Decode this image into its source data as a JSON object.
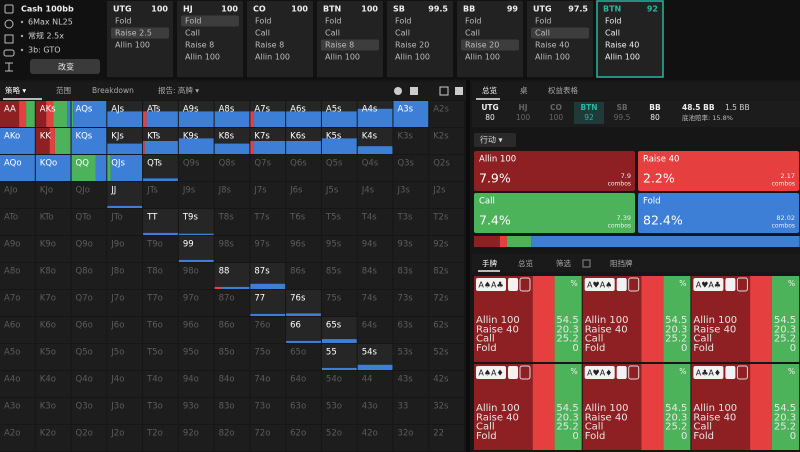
{
  "sidebar": {
    "title": "Cash 100bb",
    "items": [
      "6Max NL25",
      "常规 2.5x",
      "3b: GTO"
    ],
    "button": "改变"
  },
  "action_columns": [
    {
      "position": "UTG",
      "stack": 100,
      "actions": [
        "Fold",
        "Raise 2.5",
        "Allin 100"
      ],
      "selected": 1
    },
    {
      "position": "HJ",
      "stack": 100,
      "actions": [
        "Fold",
        "Call",
        "Raise 8",
        "Allin 100"
      ],
      "selected": 0
    },
    {
      "position": "CO",
      "stack": 100,
      "actions": [
        "Fold",
        "Call",
        "Raise 8",
        "Allin 100"
      ]
    },
    {
      "position": "BTN",
      "stack": 100,
      "actions": [
        "Fold",
        "Call",
        "Raise 8",
        "Allin 100"
      ],
      "selected": 2
    },
    {
      "position": "SB",
      "stack": 99.5,
      "actions": [
        "Fold",
        "Call",
        "Raise 20",
        "Allin 100"
      ]
    },
    {
      "position": "BB",
      "stack": 99,
      "actions": [
        "Fold",
        "Call",
        "Raise 20",
        "Allin 100"
      ],
      "selected": 2
    },
    {
      "position": "UTG",
      "stack": 97.5,
      "actions": [
        "Fold",
        "Call",
        "Raise 40",
        "Allin 100"
      ],
      "selected": 1
    },
    {
      "position": "BTN",
      "stack": 92,
      "actions": [
        "Fold",
        "Call",
        "Raise 40",
        "Allin 100"
      ],
      "active": true
    }
  ],
  "strategy_tabs": [
    "策略 ▾",
    "范围",
    "Breakdown",
    "报告: 高牌 ▾"
  ],
  "hand_grid": {
    "rows": [
      [
        {
          "label": "AA",
          "weight": 1,
          "mix": [
            55,
            20,
            25,
            0
          ]
        },
        {
          "label": "AKs",
          "weight": 1,
          "mix": [
            30,
            20,
            40,
            10
          ]
        },
        {
          "label": "AQs",
          "weight": 1,
          "mix": [
            0,
            0,
            5,
            95
          ]
        },
        {
          "label": "AJs",
          "weight": 0.6,
          "mix": [
            0,
            0,
            0,
            100
          ]
        },
        {
          "label": "ATs",
          "weight": 0.6,
          "mix": [
            0,
            10,
            0,
            90
          ]
        },
        {
          "label": "A9s",
          "weight": 0.6,
          "mix": [
            0,
            0,
            0,
            100
          ]
        },
        {
          "label": "A8s",
          "weight": 0.6,
          "mix": [
            0,
            0,
            0,
            100
          ]
        },
        {
          "label": "A7s",
          "weight": 0.6,
          "mix": [
            0,
            10,
            0,
            90
          ]
        },
        {
          "label": "A6s",
          "weight": 0.6,
          "mix": [
            0,
            0,
            0,
            100
          ]
        },
        {
          "label": "A5s",
          "weight": 0.6,
          "mix": [
            0,
            0,
            0,
            100
          ]
        },
        {
          "label": "A4s",
          "weight": 0.7,
          "mix": [
            0,
            0,
            0,
            100
          ]
        },
        {
          "label": "A3s",
          "weight": 1,
          "mix": [
            0,
            0,
            0,
            100
          ]
        },
        {
          "label": "A2s"
        }
      ],
      [
        {
          "label": "AKo",
          "weight": 1,
          "mix": [
            0,
            0,
            0,
            100
          ]
        },
        {
          "label": "KK",
          "weight": 1,
          "mix": [
            40,
            15,
            45,
            0
          ]
        },
        {
          "label": "KQs",
          "weight": 1,
          "mix": [
            0,
            0,
            0,
            100
          ]
        },
        {
          "label": "KJs",
          "weight": 0.4,
          "mix": [
            0,
            0,
            0,
            100
          ]
        },
        {
          "label": "KTs",
          "weight": 0.5,
          "mix": [
            0,
            5,
            0,
            95
          ]
        },
        {
          "label": "K9s",
          "weight": 0.6,
          "mix": [
            0,
            0,
            0,
            100
          ]
        },
        {
          "label": "K8s",
          "weight": 0.4,
          "mix": [
            0,
            0,
            0,
            100
          ]
        },
        {
          "label": "K7s",
          "weight": 0.5,
          "mix": [
            0,
            8,
            0,
            92
          ]
        },
        {
          "label": "K6s",
          "weight": 0.5,
          "mix": [
            0,
            0,
            0,
            100
          ]
        },
        {
          "label": "K5s",
          "weight": 0.6,
          "mix": [
            0,
            0,
            0,
            100
          ]
        },
        {
          "label": "K4s",
          "weight": 0.3,
          "mix": [
            0,
            0,
            0,
            100
          ]
        },
        {
          "label": "K3s"
        },
        {
          "label": "K2s"
        }
      ],
      [
        {
          "label": "AQo",
          "weight": 1,
          "mix": [
            0,
            0,
            0,
            100
          ]
        },
        {
          "label": "KQo",
          "weight": 1,
          "mix": [
            0,
            0,
            0,
            100
          ]
        },
        {
          "label": "QQ",
          "weight": 1,
          "mix": [
            0,
            0,
            70,
            30
          ]
        },
        {
          "label": "QJs",
          "weight": 1,
          "mix": [
            0,
            0,
            10,
            90
          ]
        },
        {
          "label": "QTs",
          "weight": 0.1,
          "mix": [
            0,
            0,
            0,
            100
          ]
        },
        {
          "label": "Q9s"
        },
        {
          "label": "Q8s"
        },
        {
          "label": "Q7s"
        },
        {
          "label": "Q6s"
        },
        {
          "label": "Q5s"
        },
        {
          "label": "Q4s"
        },
        {
          "label": "Q3s"
        },
        {
          "label": "Q2s"
        }
      ],
      [
        {
          "label": "AJo"
        },
        {
          "label": "KJo"
        },
        {
          "label": "QJo"
        },
        {
          "label": "JJ",
          "weight": 0.08,
          "mix": [
            0,
            0,
            0,
            100
          ]
        },
        {
          "label": "JTs"
        },
        {
          "label": "J9s"
        },
        {
          "label": "J8s"
        },
        {
          "label": "J7s"
        },
        {
          "label": "J6s"
        },
        {
          "label": "J5s"
        },
        {
          "label": "J4s"
        },
        {
          "label": "J3s"
        },
        {
          "label": "J2s"
        }
      ],
      [
        {
          "label": "ATo"
        },
        {
          "label": "KTo"
        },
        {
          "label": "QTo"
        },
        {
          "label": "JTo"
        },
        {
          "label": "TT",
          "weight": 0.08,
          "mix": [
            0,
            0,
            0,
            100
          ]
        },
        {
          "label": "T9s",
          "weight": 0.05,
          "mix": [
            0,
            0,
            0,
            100
          ]
        },
        {
          "label": "T8s"
        },
        {
          "label": "T7s"
        },
        {
          "label": "T6s"
        },
        {
          "label": "T5s"
        },
        {
          "label": "T4s"
        },
        {
          "label": "T3s"
        },
        {
          "label": "T2s"
        }
      ],
      [
        {
          "label": "A9o"
        },
        {
          "label": "K9o"
        },
        {
          "label": "Q9o"
        },
        {
          "label": "J9o"
        },
        {
          "label": "T9o"
        },
        {
          "label": "99",
          "weight": 0.08,
          "mix": [
            0,
            0,
            0,
            100
          ]
        },
        {
          "label": "98s"
        },
        {
          "label": "97s"
        },
        {
          "label": "96s"
        },
        {
          "label": "95s"
        },
        {
          "label": "94s"
        },
        {
          "label": "93s"
        },
        {
          "label": "92s"
        }
      ],
      [
        {
          "label": "A8o"
        },
        {
          "label": "K8o"
        },
        {
          "label": "Q8o"
        },
        {
          "label": "J8o"
        },
        {
          "label": "T8o"
        },
        {
          "label": "98o"
        },
        {
          "label": "88",
          "weight": 0.08,
          "mix": [
            0,
            20,
            0,
            80
          ]
        },
        {
          "label": "87s",
          "weight": 0.2,
          "mix": [
            0,
            0,
            0,
            100
          ]
        },
        {
          "label": "86s"
        },
        {
          "label": "85s"
        },
        {
          "label": "84s"
        },
        {
          "label": "83s"
        },
        {
          "label": "82s"
        }
      ],
      [
        {
          "label": "A7o"
        },
        {
          "label": "K7o"
        },
        {
          "label": "Q7o"
        },
        {
          "label": "J7o"
        },
        {
          "label": "T7o"
        },
        {
          "label": "97o"
        },
        {
          "label": "87o"
        },
        {
          "label": "77",
          "weight": 0.08,
          "mix": [
            0,
            0,
            0,
            100
          ]
        },
        {
          "label": "76s",
          "weight": 0.1,
          "mix": [
            0,
            0,
            0,
            100
          ]
        },
        {
          "label": "75s"
        },
        {
          "label": "74s"
        },
        {
          "label": "73s"
        },
        {
          "label": "72s"
        }
      ],
      [
        {
          "label": "A6o"
        },
        {
          "label": "K6o"
        },
        {
          "label": "Q6o"
        },
        {
          "label": "J6o"
        },
        {
          "label": "T6o"
        },
        {
          "label": "96o"
        },
        {
          "label": "86o"
        },
        {
          "label": "76o"
        },
        {
          "label": "66",
          "weight": 0.08,
          "mix": [
            0,
            0,
            0,
            100
          ]
        },
        {
          "label": "65s",
          "weight": 0.15,
          "mix": [
            0,
            0,
            0,
            100
          ]
        },
        {
          "label": "64s"
        },
        {
          "label": "63s"
        },
        {
          "label": "62s"
        }
      ],
      [
        {
          "label": "A5o"
        },
        {
          "label": "K5o"
        },
        {
          "label": "Q5o"
        },
        {
          "label": "J5o"
        },
        {
          "label": "T5o"
        },
        {
          "label": "95o"
        },
        {
          "label": "85o"
        },
        {
          "label": "75o"
        },
        {
          "label": "65o"
        },
        {
          "label": "55",
          "weight": 0.08,
          "mix": [
            0,
            0,
            0,
            100
          ]
        },
        {
          "label": "54s",
          "weight": 0.2,
          "mix": [
            0,
            0,
            0,
            100
          ]
        },
        {
          "label": "53s"
        },
        {
          "label": "52s"
        }
      ],
      [
        {
          "label": "A4o"
        },
        {
          "label": "K4o"
        },
        {
          "label": "Q4o"
        },
        {
          "label": "J4o"
        },
        {
          "label": "T4o"
        },
        {
          "label": "94o"
        },
        {
          "label": "84o"
        },
        {
          "label": "74o"
        },
        {
          "label": "64o"
        },
        {
          "label": "54o"
        },
        {
          "label": "44"
        },
        {
          "label": "43s"
        },
        {
          "label": "42s"
        }
      ],
      [
        {
          "label": "A3o"
        },
        {
          "label": "K3o"
        },
        {
          "label": "Q3o"
        },
        {
          "label": "J3o"
        },
        {
          "label": "T3o"
        },
        {
          "label": "93o"
        },
        {
          "label": "83o"
        },
        {
          "label": "73o"
        },
        {
          "label": "63o"
        },
        {
          "label": "53o"
        },
        {
          "label": "43o"
        },
        {
          "label": "33"
        },
        {
          "label": "32s"
        }
      ],
      [
        {
          "label": "A2o"
        },
        {
          "label": "K2o"
        },
        {
          "label": "Q2o"
        },
        {
          "label": "J2o"
        },
        {
          "label": "T2o"
        },
        {
          "label": "92o"
        },
        {
          "label": "82o"
        },
        {
          "label": "72o"
        },
        {
          "label": "62o"
        },
        {
          "label": "52o"
        },
        {
          "label": "42o"
        },
        {
          "label": "32o"
        },
        {
          "label": "22"
        }
      ]
    ]
  },
  "right_tabs": [
    "总览",
    "桌",
    "权益表格"
  ],
  "positions": [
    {
      "position": "UTG",
      "stack": 80
    },
    {
      "position": "HJ",
      "stack": 100,
      "dim": true
    },
    {
      "position": "CO",
      "stack": 100,
      "dim": true
    },
    {
      "position": "BTN",
      "stack": 92,
      "highlight": true
    },
    {
      "position": "SB",
      "stack": 99.5,
      "dim": true
    },
    {
      "position": "BB",
      "stack": 80
    }
  ],
  "pot": {
    "size": "48.5 BB",
    "call": "1.5 BB",
    "odds": "底池赔率: 15.8%"
  },
  "action_menu": "行动 ▾",
  "actions": [
    {
      "name": "Allin 100",
      "color": "#8e1f22",
      "pct": 7.9,
      "pct_label": "7.9%",
      "combos": 7.9
    },
    {
      "name": "Raise 40",
      "color": "#e5403f",
      "pct": 2.2,
      "pct_label": "2.2%",
      "combos": 2.17
    },
    {
      "name": "Call",
      "color": "#4db35b",
      "pct": 7.4,
      "pct_label": "7.4%",
      "combos": 7.39
    },
    {
      "name": "Fold",
      "color": "#3d7fd6",
      "pct": 82.4,
      "pct_label": "82.4%",
      "combos": 82.02
    }
  ],
  "combos_unit": "combos",
  "hand_tabs": [
    "手牌",
    "总览",
    "筛选",
    "阻挡牌"
  ],
  "percent_sign": "%",
  "hand_cards": [
    {
      "cards": "A♠A♣",
      "values": [
        54.5,
        20.3,
        25.2,
        0
      ]
    },
    {
      "cards": "A♥A♠",
      "values": [
        54.5,
        20.3,
        25.2,
        0
      ]
    },
    {
      "cards": "A♥A♣",
      "values": [
        54.5,
        20.3,
        25.2,
        0
      ]
    },
    {
      "cards": "A♠A♦",
      "values": [
        54.5,
        20.3,
        25.2,
        0
      ]
    },
    {
      "cards": "A♥A♦",
      "values": [
        54.5,
        20.3,
        25.2,
        0
      ]
    },
    {
      "cards": "A♣A♦",
      "values": [
        54.5,
        20.3,
        25.2,
        0
      ]
    }
  ]
}
